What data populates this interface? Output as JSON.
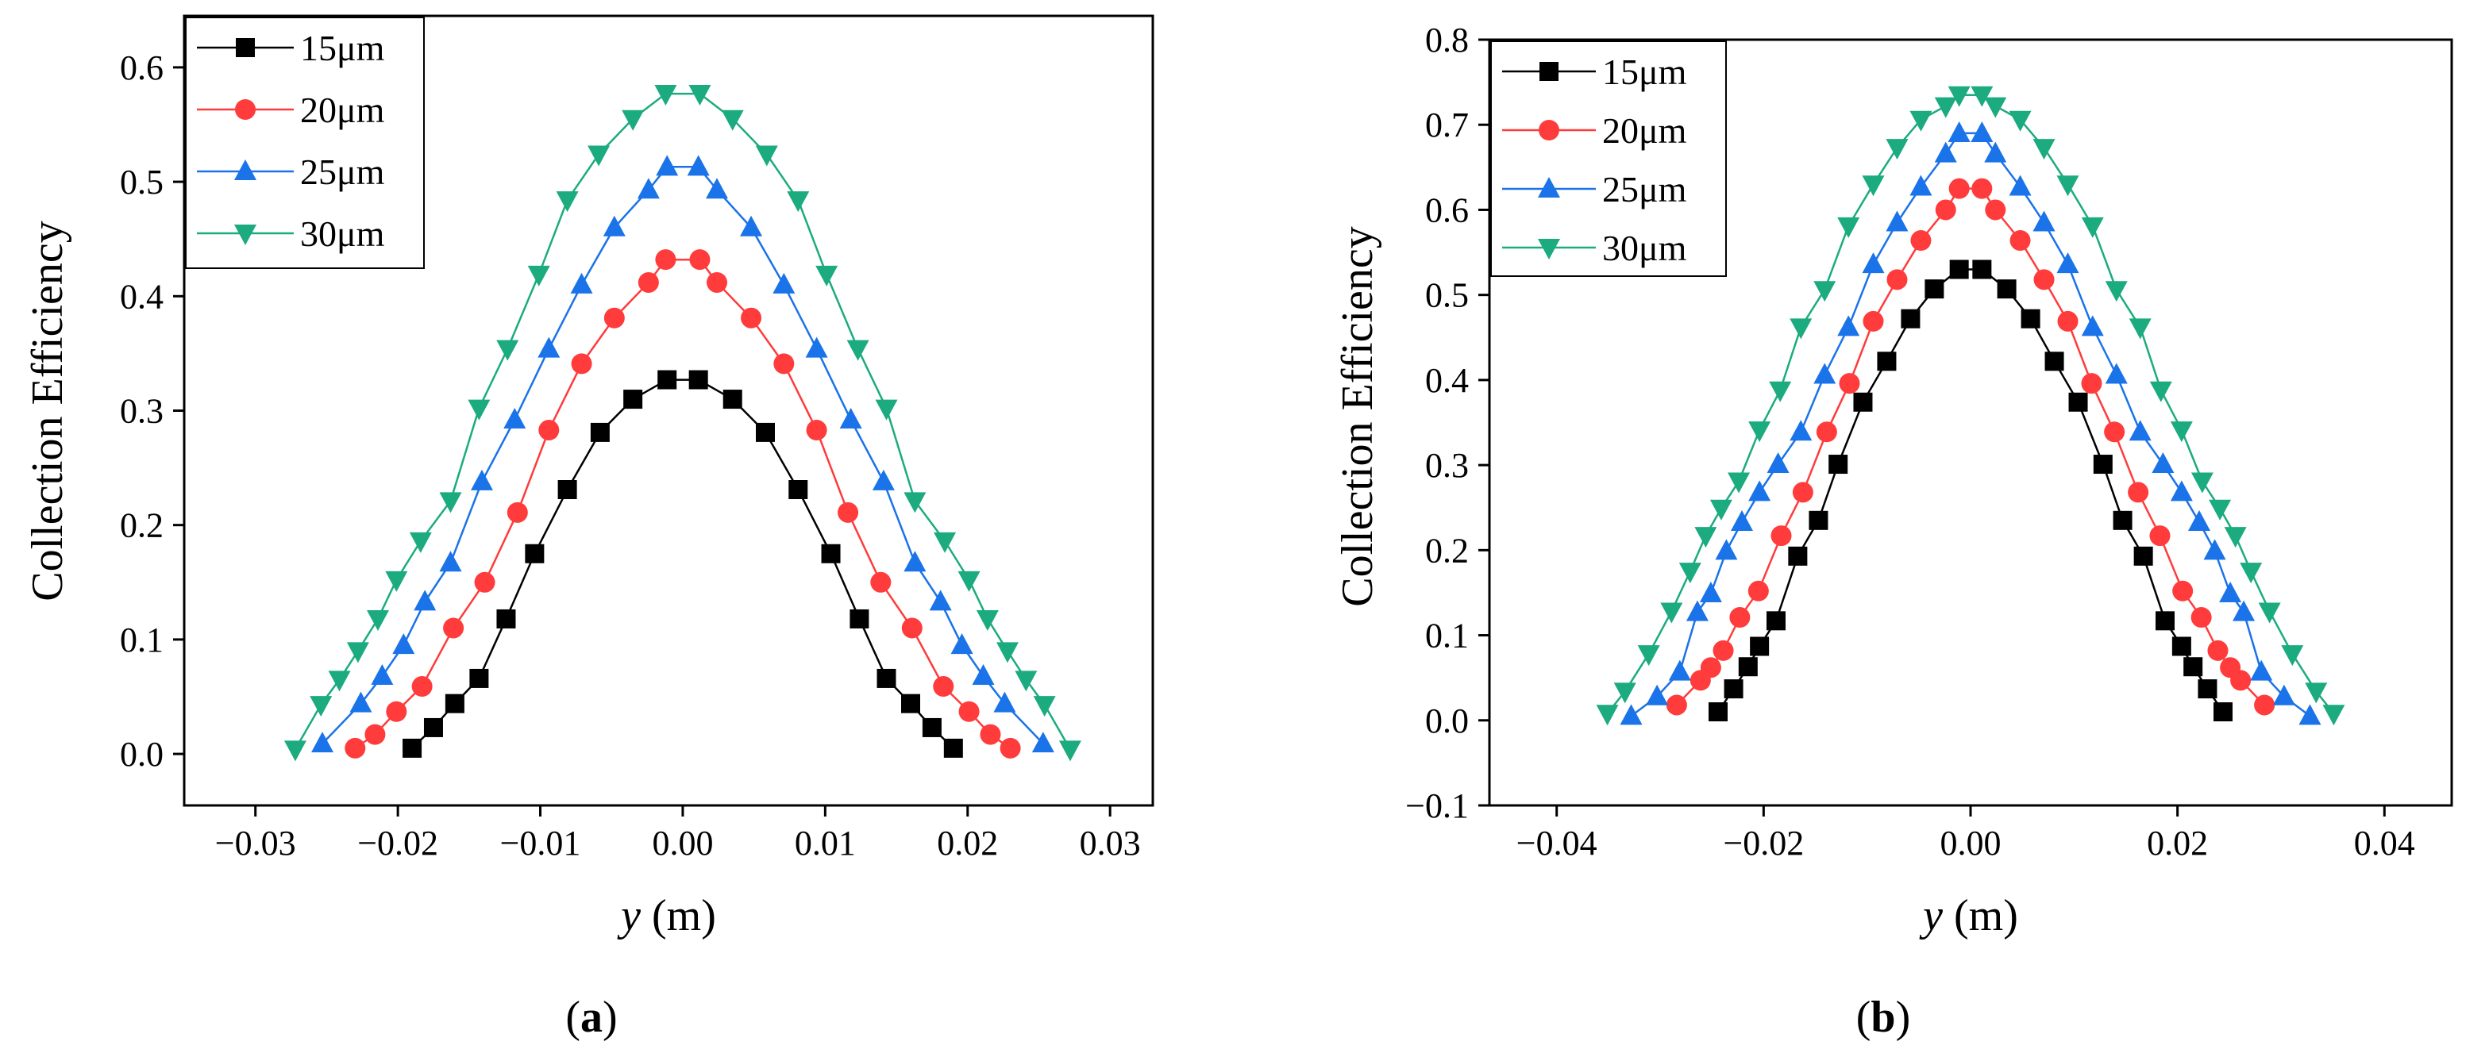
{
  "panels": [
    {
      "label_open": "(",
      "label_letter": "a",
      "label_close": ")",
      "xlabel_var": "y",
      "xlabel_unit": " (m)",
      "ylabel": "Collection Efficiency"
    },
    {
      "label_open": "(",
      "label_letter": "b",
      "label_close": ")",
      "xlabel_var": "y",
      "xlabel_unit": " (m)",
      "ylabel": "Collection Efficiency"
    }
  ],
  "chart_data": [
    {
      "type": "line",
      "title": "",
      "xlabel": "y (m)",
      "ylabel": "Collection Efficiency",
      "xlim": [
        -0.035,
        0.033
      ],
      "ylim": [
        -0.045,
        0.645
      ],
      "xticks": [
        -0.03,
        -0.02,
        -0.01,
        0.0,
        0.01,
        0.02,
        0.03
      ],
      "xtick_labels": [
        "−0.03",
        "−0.02",
        "−0.01",
        "0.00",
        "0.01",
        "0.02",
        "0.03"
      ],
      "yticks": [
        0.0,
        0.1,
        0.2,
        0.3,
        0.4,
        0.5,
        0.6
      ],
      "ytick_labels": [
        "0.0",
        "0.1",
        "0.2",
        "0.3",
        "0.4",
        "0.5",
        "0.6"
      ],
      "grid": false,
      "legend_position": "top-left",
      "series": [
        {
          "name": "15μm",
          "color": "#000000",
          "marker": "square",
          "points": [
            [
              -0.019,
              0.005
            ],
            [
              -0.0175,
              0.023
            ],
            [
              -0.016,
              0.044
            ],
            [
              -0.0143,
              0.066
            ],
            [
              -0.0124,
              0.118
            ],
            [
              -0.0104,
              0.175
            ],
            [
              -0.0081,
              0.231
            ],
            [
              -0.0058,
              0.281
            ],
            [
              -0.0035,
              0.31
            ],
            [
              -0.0011,
              0.327
            ],
            [
              0.0011,
              0.327
            ],
            [
              0.0035,
              0.31
            ],
            [
              0.0058,
              0.281
            ],
            [
              0.0081,
              0.231
            ],
            [
              0.0104,
              0.175
            ],
            [
              0.0124,
              0.118
            ],
            [
              0.0143,
              0.066
            ],
            [
              0.016,
              0.044
            ],
            [
              0.0175,
              0.023
            ],
            [
              0.019,
              0.005
            ]
          ]
        },
        {
          "name": "20μm",
          "color": "#ff3b3b",
          "marker": "circle",
          "points": [
            [
              -0.023,
              0.005
            ],
            [
              -0.0216,
              0.017
            ],
            [
              -0.0201,
              0.037
            ],
            [
              -0.0183,
              0.059
            ],
            [
              -0.0161,
              0.11
            ],
            [
              -0.0139,
              0.15
            ],
            [
              -0.0116,
              0.211
            ],
            [
              -0.0094,
              0.283
            ],
            [
              -0.0071,
              0.341
            ],
            [
              -0.0048,
              0.381
            ],
            [
              -0.0024,
              0.412
            ],
            [
              -0.0012,
              0.432
            ],
            [
              0.0012,
              0.432
            ],
            [
              0.0024,
              0.412
            ],
            [
              0.0048,
              0.381
            ],
            [
              0.0071,
              0.341
            ],
            [
              0.0094,
              0.283
            ],
            [
              0.0116,
              0.211
            ],
            [
              0.0139,
              0.15
            ],
            [
              0.0161,
              0.11
            ],
            [
              0.0183,
              0.059
            ],
            [
              0.0201,
              0.037
            ],
            [
              0.0216,
              0.017
            ],
            [
              0.023,
              0.005
            ]
          ]
        },
        {
          "name": "25μm",
          "color": "#1a73e8",
          "marker": "triangle-up",
          "points": [
            [
              -0.0253,
              0.009
            ],
            [
              -0.0226,
              0.044
            ],
            [
              -0.0211,
              0.068
            ],
            [
              -0.0196,
              0.095
            ],
            [
              -0.0181,
              0.133
            ],
            [
              -0.0163,
              0.167
            ],
            [
              -0.0141,
              0.238
            ],
            [
              -0.0118,
              0.292
            ],
            [
              -0.0094,
              0.354
            ],
            [
              -0.0071,
              0.41
            ],
            [
              -0.0048,
              0.46
            ],
            [
              -0.0024,
              0.493
            ],
            [
              -0.0011,
              0.513
            ],
            [
              0.0011,
              0.513
            ],
            [
              0.0024,
              0.493
            ],
            [
              0.0048,
              0.46
            ],
            [
              0.0071,
              0.41
            ],
            [
              0.0094,
              0.354
            ],
            [
              0.0118,
              0.292
            ],
            [
              0.0141,
              0.238
            ],
            [
              0.0163,
              0.167
            ],
            [
              0.0181,
              0.133
            ],
            [
              0.0196,
              0.095
            ],
            [
              0.0211,
              0.068
            ],
            [
              0.0226,
              0.044
            ],
            [
              0.0253,
              0.009
            ]
          ]
        },
        {
          "name": "30μm",
          "color": "#1bab7f",
          "marker": "triangle-down",
          "points": [
            [
              -0.0272,
              0.004
            ],
            [
              -0.0254,
              0.043
            ],
            [
              -0.0241,
              0.065
            ],
            [
              -0.0228,
              0.09
            ],
            [
              -0.0214,
              0.118
            ],
            [
              -0.0201,
              0.152
            ],
            [
              -0.0184,
              0.186
            ],
            [
              -0.0163,
              0.221
            ],
            [
              -0.0143,
              0.302
            ],
            [
              -0.0123,
              0.354
            ],
            [
              -0.0101,
              0.419
            ],
            [
              -0.0081,
              0.484
            ],
            [
              -0.0059,
              0.524
            ],
            [
              -0.0035,
              0.555
            ],
            [
              -0.0012,
              0.577
            ],
            [
              0.0012,
              0.577
            ],
            [
              0.0035,
              0.555
            ],
            [
              0.0059,
              0.524
            ],
            [
              0.0081,
              0.484
            ],
            [
              0.0101,
              0.419
            ],
            [
              0.0123,
              0.354
            ],
            [
              0.0143,
              0.302
            ],
            [
              0.0163,
              0.221
            ],
            [
              0.0184,
              0.186
            ],
            [
              0.0201,
              0.152
            ],
            [
              0.0214,
              0.118
            ],
            [
              0.0228,
              0.09
            ],
            [
              0.0241,
              0.065
            ],
            [
              0.0254,
              0.043
            ],
            [
              0.0272,
              0.004
            ]
          ]
        }
      ]
    },
    {
      "type": "line",
      "title": "",
      "xlabel": "y (m)",
      "ylabel": "Collection Efficiency",
      "xlim": [
        -0.0465,
        0.0465
      ],
      "ylim": [
        -0.1,
        0.8
      ],
      "xticks": [
        -0.04,
        -0.02,
        0.0,
        0.02,
        0.04
      ],
      "xtick_labels": [
        "−0.04",
        "−0.02",
        "0.00",
        "0.02",
        "0.04"
      ],
      "yticks": [
        -0.1,
        0.0,
        0.1,
        0.2,
        0.3,
        0.4,
        0.5,
        0.6,
        0.7,
        0.8
      ],
      "ytick_labels": [
        "−0.1",
        "0.0",
        "0.1",
        "0.2",
        "0.3",
        "0.4",
        "0.5",
        "0.6",
        "0.7",
        "0.8"
      ],
      "grid": false,
      "legend_position": "top-left",
      "series": [
        {
          "name": "15μm",
          "color": "#000000",
          "marker": "square",
          "points": [
            [
              -0.0244,
              0.01
            ],
            [
              -0.0229,
              0.037
            ],
            [
              -0.0215,
              0.063
            ],
            [
              -0.0204,
              0.087
            ],
            [
              -0.0188,
              0.117
            ],
            [
              -0.0167,
              0.193
            ],
            [
              -0.0147,
              0.235
            ],
            [
              -0.0128,
              0.301
            ],
            [
              -0.0104,
              0.374
            ],
            [
              -0.0081,
              0.422
            ],
            [
              -0.0058,
              0.472
            ],
            [
              -0.0035,
              0.507
            ],
            [
              -0.0011,
              0.53
            ],
            [
              0.0011,
              0.53
            ],
            [
              0.0035,
              0.507
            ],
            [
              0.0058,
              0.472
            ],
            [
              0.0081,
              0.422
            ],
            [
              0.0104,
              0.374
            ],
            [
              0.0128,
              0.301
            ],
            [
              0.0147,
              0.235
            ],
            [
              0.0167,
              0.193
            ],
            [
              0.0188,
              0.117
            ],
            [
              0.0204,
              0.087
            ],
            [
              0.0215,
              0.063
            ],
            [
              0.0229,
              0.037
            ],
            [
              0.0244,
              0.01
            ]
          ]
        },
        {
          "name": "20μm",
          "color": "#ff3b3b",
          "marker": "circle",
          "points": [
            [
              -0.0284,
              0.018
            ],
            [
              -0.0261,
              0.047
            ],
            [
              -0.0251,
              0.062
            ],
            [
              -0.0239,
              0.082
            ],
            [
              -0.0223,
              0.121
            ],
            [
              -0.0205,
              0.152
            ],
            [
              -0.0183,
              0.217
            ],
            [
              -0.0162,
              0.268
            ],
            [
              -0.0139,
              0.339
            ],
            [
              -0.0117,
              0.396
            ],
            [
              -0.0094,
              0.469
            ],
            [
              -0.0071,
              0.518
            ],
            [
              -0.0048,
              0.564
            ],
            [
              -0.0024,
              0.6
            ],
            [
              -0.0011,
              0.625
            ],
            [
              0.0011,
              0.625
            ],
            [
              0.0024,
              0.6
            ],
            [
              0.0048,
              0.564
            ],
            [
              0.0071,
              0.518
            ],
            [
              0.0094,
              0.469
            ],
            [
              0.0117,
              0.396
            ],
            [
              0.0139,
              0.339
            ],
            [
              0.0162,
              0.268
            ],
            [
              0.0183,
              0.217
            ],
            [
              0.0205,
              0.152
            ],
            [
              0.0223,
              0.121
            ],
            [
              0.0239,
              0.082
            ],
            [
              0.0251,
              0.062
            ],
            [
              0.0261,
              0.047
            ],
            [
              0.0284,
              0.018
            ]
          ]
        },
        {
          "name": "25μm",
          "color": "#1a73e8",
          "marker": "triangle-up",
          "points": [
            [
              -0.0328,
              0.005
            ],
            [
              -0.0303,
              0.028
            ],
            [
              -0.0281,
              0.057
            ],
            [
              -0.0264,
              0.127
            ],
            [
              -0.0251,
              0.149
            ],
            [
              -0.0236,
              0.199
            ],
            [
              -0.0221,
              0.233
            ],
            [
              -0.0204,
              0.268
            ],
            [
              -0.0186,
              0.301
            ],
            [
              -0.0164,
              0.339
            ],
            [
              -0.0141,
              0.406
            ],
            [
              -0.0118,
              0.462
            ],
            [
              -0.0094,
              0.536
            ],
            [
              -0.0071,
              0.585
            ],
            [
              -0.0048,
              0.627
            ],
            [
              -0.0024,
              0.666
            ],
            [
              -0.0011,
              0.69
            ],
            [
              0.0011,
              0.69
            ],
            [
              0.0024,
              0.666
            ],
            [
              0.0048,
              0.627
            ],
            [
              0.0071,
              0.585
            ],
            [
              0.0094,
              0.536
            ],
            [
              0.0118,
              0.462
            ],
            [
              0.0141,
              0.406
            ],
            [
              0.0164,
              0.339
            ],
            [
              0.0186,
              0.301
            ],
            [
              0.0204,
              0.268
            ],
            [
              0.0221,
              0.233
            ],
            [
              0.0236,
              0.199
            ],
            [
              0.0251,
              0.149
            ],
            [
              0.0264,
              0.127
            ],
            [
              0.0281,
              0.057
            ],
            [
              0.0303,
              0.028
            ],
            [
              0.0328,
              0.005
            ]
          ]
        },
        {
          "name": "30μm",
          "color": "#1bab7f",
          "marker": "triangle-down",
          "points": [
            [
              -0.0351,
              0.008
            ],
            [
              -0.0334,
              0.034
            ],
            [
              -0.0311,
              0.078
            ],
            [
              -0.0289,
              0.128
            ],
            [
              -0.0271,
              0.175
            ],
            [
              -0.0256,
              0.217
            ],
            [
              -0.0241,
              0.249
            ],
            [
              -0.0224,
              0.281
            ],
            [
              -0.0204,
              0.341
            ],
            [
              -0.0184,
              0.388
            ],
            [
              -0.0164,
              0.462
            ],
            [
              -0.0141,
              0.506
            ],
            [
              -0.0118,
              0.581
            ],
            [
              -0.0094,
              0.63
            ],
            [
              -0.0071,
              0.673
            ],
            [
              -0.0048,
              0.706
            ],
            [
              -0.0024,
              0.722
            ],
            [
              -0.0011,
              0.735
            ],
            [
              0.0011,
              0.735
            ],
            [
              0.0024,
              0.722
            ],
            [
              0.0048,
              0.706
            ],
            [
              0.0071,
              0.673
            ],
            [
              0.0094,
              0.63
            ],
            [
              0.0118,
              0.581
            ],
            [
              0.0141,
              0.506
            ],
            [
              0.0164,
              0.462
            ],
            [
              0.0184,
              0.388
            ],
            [
              0.0204,
              0.341
            ],
            [
              0.0224,
              0.281
            ],
            [
              0.0241,
              0.249
            ],
            [
              0.0256,
              0.217
            ],
            [
              0.0271,
              0.175
            ],
            [
              0.0289,
              0.128
            ],
            [
              0.0311,
              0.078
            ],
            [
              0.0334,
              0.034
            ],
            [
              0.0351,
              0.008
            ]
          ]
        }
      ]
    }
  ]
}
